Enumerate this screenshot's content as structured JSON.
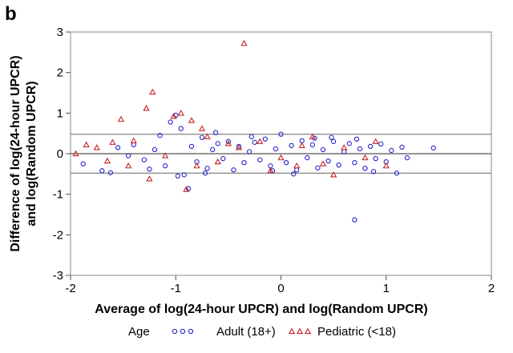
{
  "panel_label": "b",
  "chart_data": {
    "type": "scatter",
    "title": "",
    "xlabel": "Average of log(24-hour UPCR) and log(Random UPCR)",
    "ylabel_line1": "Difference of log(24-hour UPCR)",
    "ylabel_line2": "and log(Random UPCR)",
    "xlim": [
      -2,
      2
    ],
    "ylim": [
      -3,
      3
    ],
    "xticks": [
      -2,
      -1,
      0,
      1,
      2
    ],
    "yticks": [
      -3,
      -2,
      -1,
      0,
      1,
      2,
      3
    ],
    "grid": false,
    "reference_lines": [
      {
        "name": "mean",
        "y": 0.0
      },
      {
        "name": "upper-limit",
        "y": 0.48
      },
      {
        "name": "lower-limit",
        "y": -0.48
      }
    ],
    "legend": {
      "placement": "bottom",
      "title": "Age",
      "entries": [
        {
          "label": "Adult (18+)",
          "marker": "circle",
          "color": "#2323c8"
        },
        {
          "label": "Pediatric (<18)",
          "marker": "triangle",
          "color": "#c82323"
        }
      ]
    },
    "series": [
      {
        "name": "Adult (18+)",
        "marker": "circle",
        "color": "#2323c8",
        "points": [
          [
            0.7,
            -1.63
          ],
          [
            1.45,
            0.14
          ],
          [
            -1.88,
            -0.25
          ],
          [
            -1.7,
            -0.42
          ],
          [
            -1.62,
            -0.47
          ],
          [
            -1.55,
            0.15
          ],
          [
            -1.45,
            -0.05
          ],
          [
            -1.4,
            0.22
          ],
          [
            -1.3,
            -0.15
          ],
          [
            -1.2,
            0.1
          ],
          [
            -1.15,
            0.45
          ],
          [
            -1.1,
            -0.3
          ],
          [
            -1.05,
            0.78
          ],
          [
            -1.0,
            0.95
          ],
          [
            -0.95,
            0.62
          ],
          [
            -0.92,
            -0.52
          ],
          [
            -0.88,
            -0.86
          ],
          [
            -0.85,
            0.18
          ],
          [
            -0.8,
            -0.2
          ],
          [
            -0.75,
            0.4
          ],
          [
            -0.7,
            -0.36
          ],
          [
            -0.65,
            0.1
          ],
          [
            -0.6,
            0.25
          ],
          [
            -0.55,
            -0.12
          ],
          [
            -0.5,
            0.3
          ],
          [
            -0.45,
            -0.4
          ],
          [
            -0.4,
            0.18
          ],
          [
            -0.35,
            -0.22
          ],
          [
            -0.3,
            0.05
          ],
          [
            -0.25,
            0.28
          ],
          [
            -0.2,
            -0.15
          ],
          [
            -0.15,
            0.36
          ],
          [
            -0.1,
            -0.3
          ],
          [
            -0.05,
            0.12
          ],
          [
            0.0,
            0.48
          ],
          [
            0.05,
            -0.22
          ],
          [
            0.1,
            0.2
          ],
          [
            0.15,
            -0.4
          ],
          [
            0.2,
            0.32
          ],
          [
            0.25,
            -0.1
          ],
          [
            0.3,
            0.22
          ],
          [
            0.35,
            -0.35
          ],
          [
            0.4,
            0.1
          ],
          [
            0.45,
            -0.18
          ],
          [
            0.5,
            0.3
          ],
          [
            0.55,
            -0.28
          ],
          [
            0.6,
            0.05
          ],
          [
            0.65,
            0.25
          ],
          [
            0.7,
            -0.22
          ],
          [
            0.75,
            0.12
          ],
          [
            0.8,
            -0.36
          ],
          [
            0.85,
            0.18
          ],
          [
            0.9,
            -0.12
          ],
          [
            0.95,
            0.24
          ],
          [
            1.0,
            -0.2
          ],
          [
            1.05,
            0.08
          ],
          [
            1.1,
            -0.48
          ],
          [
            1.15,
            0.16
          ],
          [
            1.2,
            -0.1
          ],
          [
            -0.62,
            0.52
          ],
          [
            -0.28,
            0.42
          ],
          [
            0.12,
            -0.5
          ],
          [
            0.48,
            0.4
          ],
          [
            0.88,
            -0.44
          ],
          [
            -1.25,
            -0.38
          ],
          [
            -0.98,
            -0.55
          ],
          [
            -0.72,
            -0.48
          ],
          [
            0.32,
            0.38
          ],
          [
            -0.08,
            -0.42
          ],
          [
            0.72,
            0.36
          ]
        ]
      },
      {
        "name": "Pediatric (<18)",
        "marker": "triangle",
        "color": "#c82323",
        "points": [
          [
            -0.35,
            2.72
          ],
          [
            -1.22,
            1.52
          ],
          [
            -1.28,
            1.12
          ],
          [
            -1.52,
            0.85
          ],
          [
            -1.02,
            0.92
          ],
          [
            -0.95,
            1.0
          ],
          [
            -0.85,
            0.82
          ],
          [
            -0.75,
            0.62
          ],
          [
            -0.7,
            0.42
          ],
          [
            -1.4,
            0.32
          ],
          [
            -1.6,
            0.28
          ],
          [
            -1.75,
            0.15
          ],
          [
            -1.85,
            0.22
          ],
          [
            -1.95,
            0.0
          ],
          [
            -1.65,
            -0.18
          ],
          [
            -1.45,
            -0.3
          ],
          [
            -1.25,
            -0.62
          ],
          [
            -0.9,
            -0.88
          ],
          [
            -0.6,
            -0.2
          ],
          [
            -0.4,
            0.15
          ],
          [
            -0.2,
            0.3
          ],
          [
            0.0,
            -0.1
          ],
          [
            0.2,
            0.2
          ],
          [
            0.4,
            -0.25
          ],
          [
            0.6,
            0.15
          ],
          [
            0.8,
            -0.1
          ],
          [
            0.5,
            -0.52
          ],
          [
            0.3,
            0.42
          ],
          [
            -0.1,
            -0.42
          ],
          [
            -1.1,
            -0.05
          ],
          [
            0.9,
            0.3
          ],
          [
            1.0,
            -0.3
          ],
          [
            0.15,
            -0.3
          ],
          [
            -0.5,
            0.25
          ],
          [
            -0.8,
            -0.3
          ]
        ]
      }
    ]
  }
}
